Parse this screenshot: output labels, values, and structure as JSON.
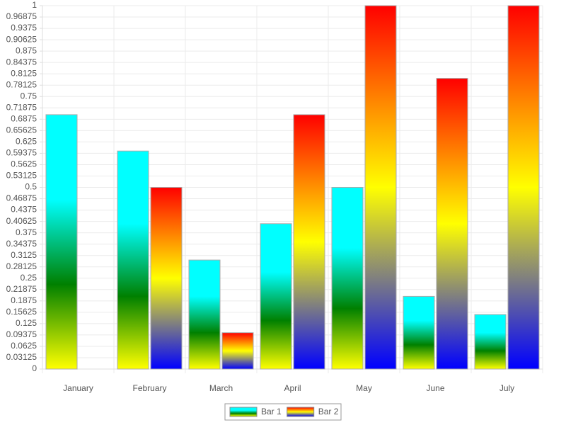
{
  "chart_data": {
    "type": "bar",
    "categories": [
      "January",
      "February",
      "March",
      "April",
      "May",
      "June",
      "July"
    ],
    "series": [
      {
        "name": "Bar 1",
        "colors": [
          "#ffff00",
          "#008000",
          "#00ffff",
          "#00ffff"
        ],
        "values": [
          0.7,
          0.6,
          0.3,
          0.4,
          0.5,
          0.2,
          0.15
        ]
      },
      {
        "name": "Bar 2",
        "colors": [
          "#0000ff",
          "#ffff00",
          "#ff0000"
        ],
        "values": [
          0,
          0.5,
          0.1,
          0.7,
          1,
          0.8,
          1
        ]
      }
    ],
    "ylim": [
      0,
      1
    ],
    "yticks": [
      0,
      0.03125,
      0.0625,
      0.09375,
      0.125,
      0.15625,
      0.1875,
      0.21875,
      0.25,
      0.28125,
      0.3125,
      0.34375,
      0.375,
      0.40625,
      0.4375,
      0.46875,
      0.5,
      0.53125,
      0.5625,
      0.59375,
      0.625,
      0.65625,
      0.6875,
      0.71875,
      0.75,
      0.78125,
      0.8125,
      0.84375,
      0.875,
      0.90625,
      0.9375,
      0.96875,
      1
    ],
    "grid": true,
    "legend": "bottom"
  }
}
